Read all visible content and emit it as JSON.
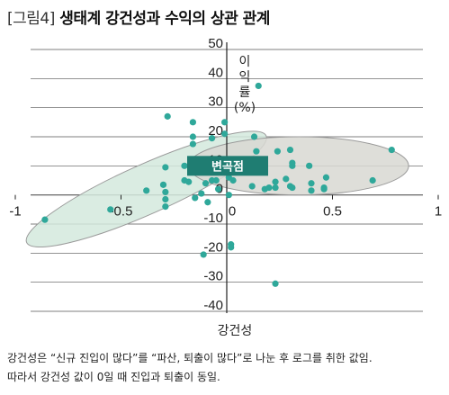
{
  "title_tag": "[그림4]",
  "title_text": "생태계 강건성과 수익의 상관 관계",
  "footnote": {
    "line1": "강건성은 “신규 진입이 많다”를 “파산, 퇴출이 많다”로 나눈 후 로그를 취한 값임.",
    "line2": "따라서 강건성 값이 0일 때 진입과 퇴출이 동일."
  },
  "callout": "변곡점",
  "colors": {
    "point": "#2fa89a",
    "ellipse_left_fill": "#d4e9dd",
    "ellipse_right_fill": "#d8d8d2",
    "ellipse_stroke": "#9a9a9a",
    "callout_bg": "#1f7d72",
    "grid": "#555555"
  },
  "chart_data": {
    "type": "scatter",
    "xlabel": "강건성",
    "ylabel": [
      "이",
      "익",
      "률",
      "(%)"
    ],
    "xlim": [
      -1,
      1
    ],
    "ylim": [
      -40,
      50
    ],
    "x_ticks": [
      {
        "value": -1,
        "label": "-1"
      },
      {
        "value": -0.5,
        "label": "-0.5"
      },
      {
        "value": 0,
        "label": "0"
      },
      {
        "value": 0.5,
        "label": "0.5"
      },
      {
        "value": 1,
        "label": "1"
      }
    ],
    "y_ticks": [
      {
        "value": 50,
        "label": "50"
      },
      {
        "value": 40,
        "label": "40"
      },
      {
        "value": 30,
        "label": "30"
      },
      {
        "value": 20,
        "label": "20"
      },
      {
        "value": 10,
        "label": "10"
      },
      {
        "value": 0,
        "label": "0"
      },
      {
        "value": -10,
        "label": "-10"
      },
      {
        "value": -20,
        "label": "-20"
      },
      {
        "value": -30,
        "label": "-30"
      },
      {
        "value": -40,
        "label": "-40"
      }
    ],
    "grid": true,
    "annotation": {
      "label": "변곡점",
      "x": 0,
      "y": 10
    },
    "regions": [
      {
        "cx": -0.38,
        "cy": 2,
        "rx": 0.62,
        "ry": 8.5,
        "angle_deg": -24,
        "fill_key": "ellipse_left_fill"
      },
      {
        "cx": 0.34,
        "cy": 10,
        "rx": 0.52,
        "ry": 10,
        "angle_deg": 0,
        "fill_key": "ellipse_right_fill"
      }
    ],
    "points": [
      [
        -0.86,
        -8.5
      ],
      [
        -0.55,
        -5
      ],
      [
        -0.38,
        1.5
      ],
      [
        -0.3,
        3.5
      ],
      [
        -0.29,
        9.5
      ],
      [
        -0.29,
        1
      ],
      [
        -0.29,
        -1.5
      ],
      [
        -0.29,
        -4
      ],
      [
        -0.2,
        10
      ],
      [
        -0.2,
        5
      ],
      [
        -0.18,
        4.5
      ],
      [
        -0.15,
        -1
      ],
      [
        -0.12,
        0.5
      ],
      [
        -0.1,
        4
      ],
      [
        -0.09,
        8
      ],
      [
        -0.09,
        -2.5
      ],
      [
        -0.07,
        5
      ],
      [
        -0.05,
        5
      ],
      [
        -0.04,
        2
      ],
      [
        -0.02,
        12
      ],
      [
        0.01,
        6
      ],
      [
        0.02,
        8
      ],
      [
        0.01,
        0
      ],
      [
        0.03,
        5
      ],
      [
        -0.01,
        25
      ],
      [
        -0.01,
        21
      ],
      [
        -0.28,
        27
      ],
      [
        -0.16,
        25
      ],
      [
        -0.16,
        20
      ],
      [
        -0.16,
        17.5
      ],
      [
        -0.07,
        19.5
      ],
      [
        0.15,
        37.5
      ],
      [
        0.13,
        20
      ],
      [
        0.14,
        15
      ],
      [
        0.12,
        11
      ],
      [
        0.12,
        3
      ],
      [
        0.18,
        2
      ],
      [
        0.2,
        2.5
      ],
      [
        0.23,
        2.5
      ],
      [
        0.23,
        4.5
      ],
      [
        0.24,
        15
      ],
      [
        0.28,
        5.5
      ],
      [
        0.3,
        3
      ],
      [
        0.3,
        15.5
      ],
      [
        0.31,
        2.5
      ],
      [
        0.31,
        10
      ],
      [
        0.31,
        11
      ],
      [
        0.39,
        10
      ],
      [
        0.4,
        4
      ],
      [
        0.4,
        1.5
      ],
      [
        0.46,
        2
      ],
      [
        0.46,
        2.5
      ],
      [
        0.47,
        6
      ],
      [
        0.69,
        5
      ],
      [
        0.78,
        15.5
      ],
      [
        0.02,
        -17
      ],
      [
        0.02,
        -18
      ],
      [
        -0.11,
        -20.5
      ],
      [
        0.23,
        -30.5
      ]
    ]
  }
}
